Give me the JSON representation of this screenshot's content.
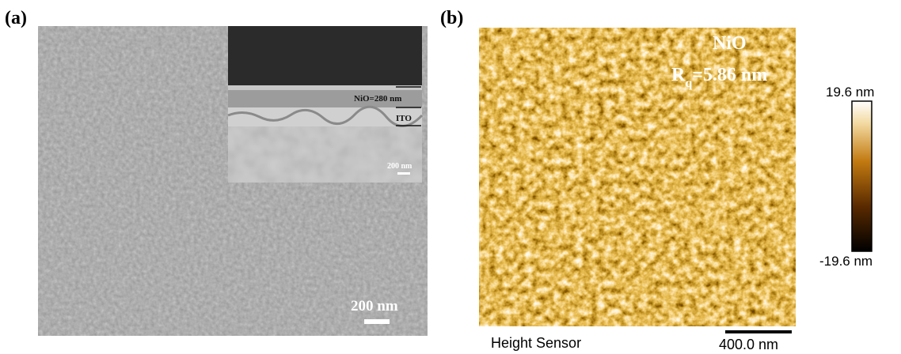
{
  "panel_a": {
    "label": "(a)",
    "scale_bar": "200 nm",
    "inset": {
      "layer_1": "NiO=280 nm",
      "layer_2": "ITO",
      "scale_bar": "200 nm"
    }
  },
  "panel_b": {
    "label": "(b)",
    "material": "NiO",
    "roughness_symbol": "R",
    "roughness_subscript": "q",
    "roughness_value": "=5.86 nm",
    "colorbar_max": "19.6 nm",
    "colorbar_min": "-19.6 nm",
    "channel": "Height Sensor",
    "scale_bar": "400.0 nm"
  }
}
